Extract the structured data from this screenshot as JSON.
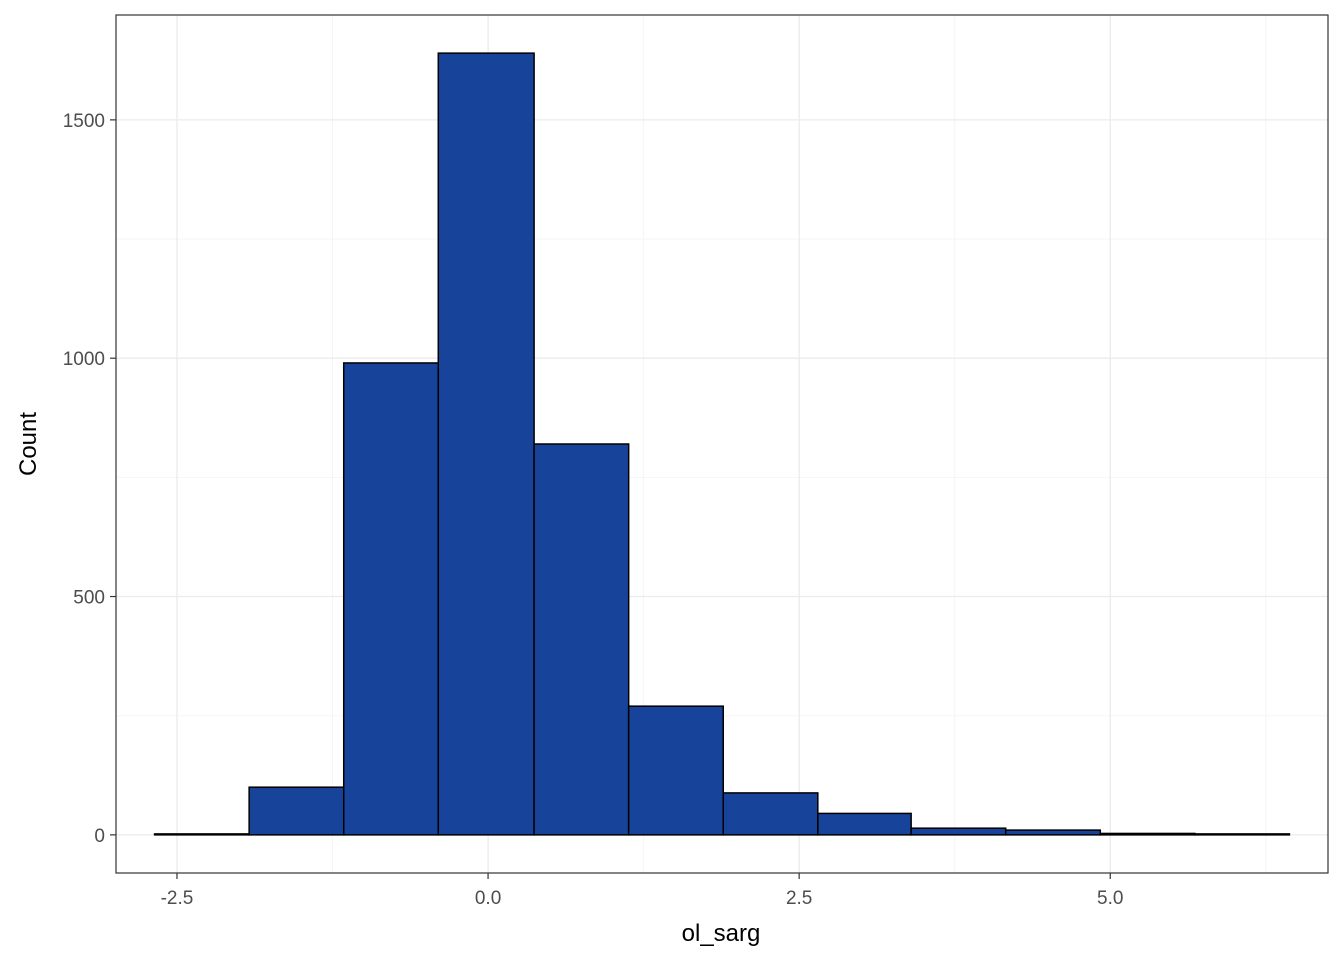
{
  "chart_data": {
    "type": "bar",
    "title": "",
    "xlabel": "ol_sarg",
    "ylabel": "Count",
    "bins": [
      {
        "x0": -2.68,
        "x1": -1.92,
        "count": 2
      },
      {
        "x0": -1.92,
        "x1": -1.16,
        "count": 100
      },
      {
        "x0": -1.16,
        "x1": -0.4,
        "count": 990
      },
      {
        "x0": -0.4,
        "x1": 0.37,
        "count": 1640
      },
      {
        "x0": 0.37,
        "x1": 1.13,
        "count": 820
      },
      {
        "x0": 1.13,
        "x1": 1.89,
        "count": 270
      },
      {
        "x0": 1.89,
        "x1": 2.65,
        "count": 88
      },
      {
        "x0": 2.65,
        "x1": 3.4,
        "count": 45
      },
      {
        "x0": 3.4,
        "x1": 4.16,
        "count": 14
      },
      {
        "x0": 4.16,
        "x1": 4.92,
        "count": 10
      },
      {
        "x0": 4.92,
        "x1": 5.68,
        "count": 3
      },
      {
        "x0": 5.68,
        "x1": 6.44,
        "count": 2
      }
    ],
    "xlim": [
      -2.99,
      6.75
    ],
    "ylim": [
      -80,
      1720
    ],
    "x_ticks": [
      {
        "value": -2.5,
        "label": "-2.5"
      },
      {
        "value": 0.0,
        "label": "0.0"
      },
      {
        "value": 2.5,
        "label": "2.5"
      },
      {
        "value": 5.0,
        "label": "5.0"
      }
    ],
    "y_ticks": [
      {
        "value": 0,
        "label": "0"
      },
      {
        "value": 500,
        "label": "500"
      },
      {
        "value": 1000,
        "label": "1000"
      },
      {
        "value": 1500,
        "label": "1500"
      }
    ],
    "grid": true,
    "legend": "none",
    "colors": {
      "bar_fill": "#17449a",
      "bar_stroke": "#000000",
      "grid_major": "#ebebeb",
      "grid_minor": "#f5f5f5",
      "panel_border": "#333333"
    }
  }
}
